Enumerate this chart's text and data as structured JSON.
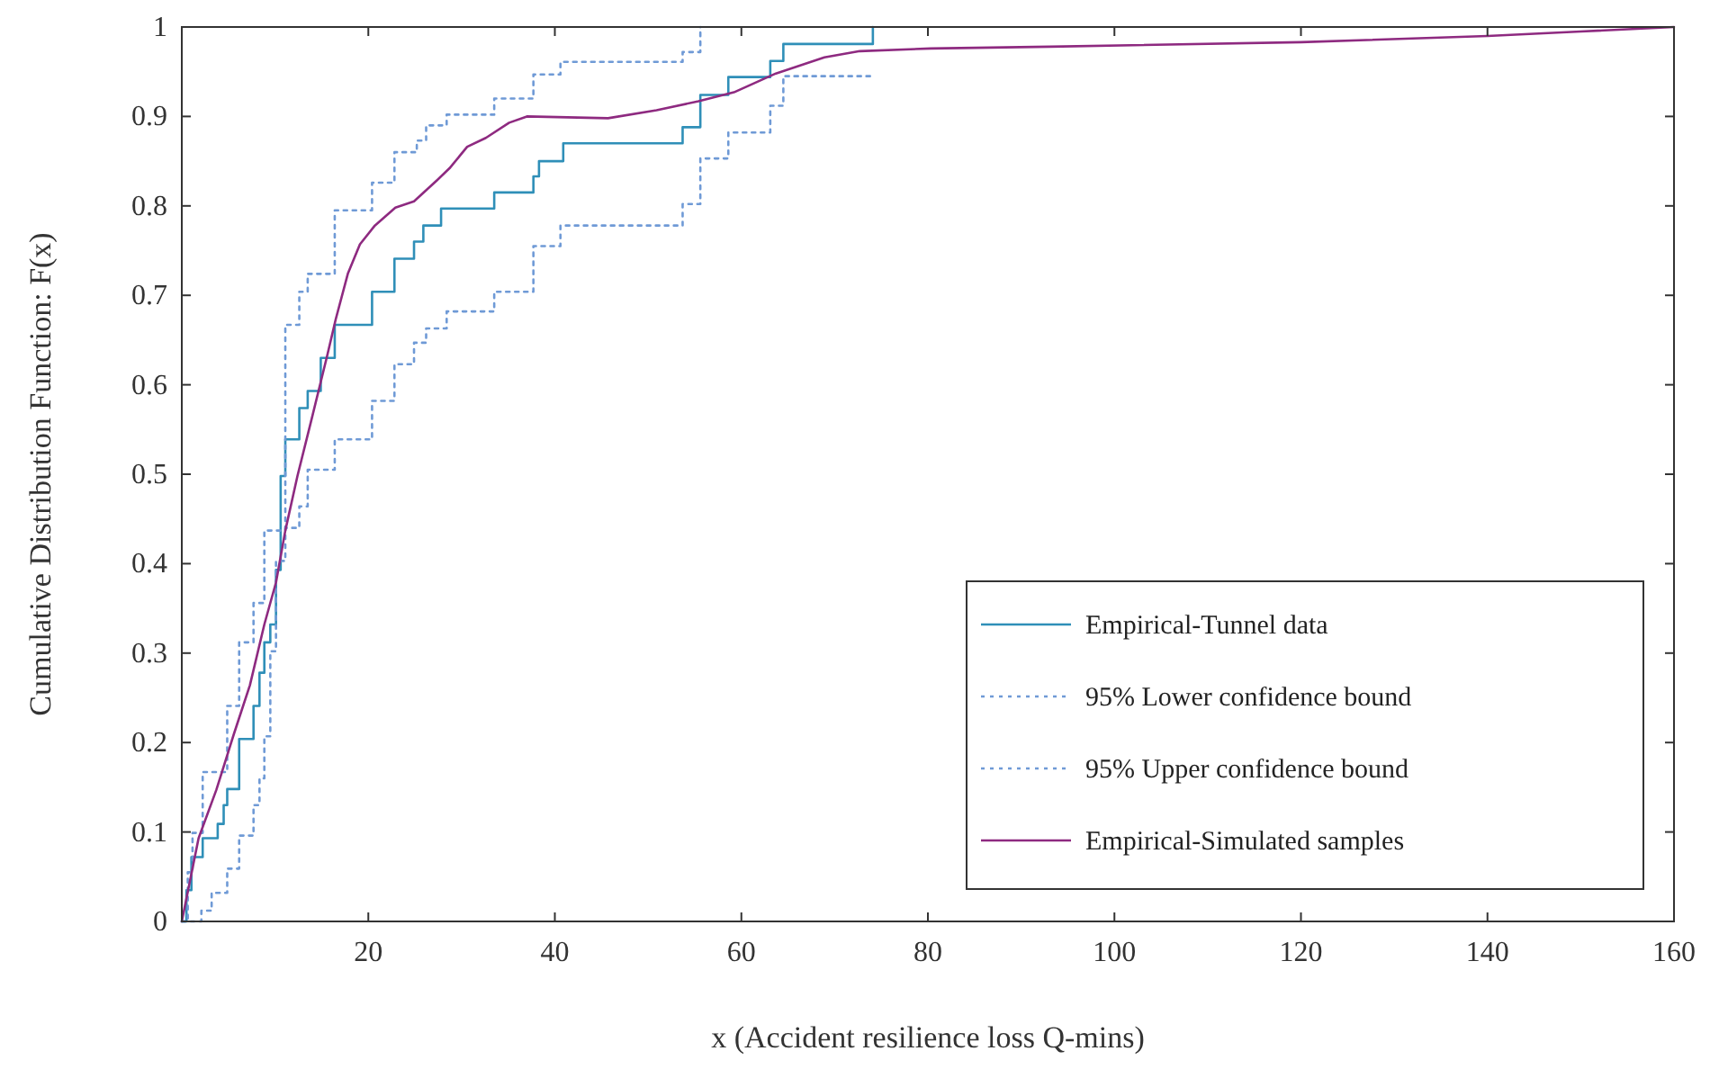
{
  "chart_data": {
    "type": "line",
    "xlabel": "x (Accident resilience loss Q-mins)",
    "ylabel": "Cumulative Distribution Function: F(x)",
    "xlim": [
      0,
      160
    ],
    "ylim": [
      0,
      1
    ],
    "xticks": [
      20,
      40,
      60,
      80,
      100,
      120,
      140,
      160
    ],
    "yticks": [
      0,
      0.1,
      0.2,
      0.3,
      0.4,
      0.5,
      0.6,
      0.7,
      0.8,
      0.9,
      1
    ],
    "grid": false,
    "legend": "bottom right",
    "marker": "none",
    "series": [
      {
        "name": "Empirical-Tunnel data",
        "type": "step",
        "color": "#2f8fb8",
        "line_style": "solid",
        "x": [
          0,
          0.5,
          1.03,
          2.24,
          3.85,
          4.49,
          4.87,
          6.15,
          7.69,
          8.33,
          8.85,
          9.49,
          10.1,
          10.6,
          11.1,
          12.6,
          13.5,
          14.9,
          16.4,
          20.4,
          22.8,
          24.9,
          25.9,
          27.8,
          33.5,
          37.7,
          38.3,
          40.9,
          53.7,
          55.6,
          58.6,
          63.1,
          64.5,
          74.1
        ],
        "values": [
          0,
          0.035,
          0.072,
          0.093,
          0.109,
          0.13,
          0.148,
          0.204,
          0.241,
          0.278,
          0.312,
          0.332,
          0.393,
          0.498,
          0.539,
          0.574,
          0.593,
          0.63,
          0.667,
          0.704,
          0.741,
          0.76,
          0.778,
          0.797,
          0.815,
          0.833,
          0.85,
          0.87,
          0.888,
          0.924,
          0.944,
          0.962,
          0.981,
          1
        ]
      },
      {
        "name": "95% Lower confidence bound",
        "type": "step",
        "color": "#6f9ad6",
        "line_style": "dotted",
        "x": [
          0,
          2.1,
          3.2,
          4.87,
          6.15,
          7.69,
          8.33,
          8.85,
          9.49,
          10.1,
          11.1,
          12.6,
          13.5,
          16.4,
          20.4,
          22.8,
          24.9,
          26.2,
          28.4,
          33.5,
          37.7,
          40.6,
          53.7,
          55.6,
          58.6,
          63.1,
          64.5,
          74.1
        ],
        "values": [
          0,
          0.012,
          0.032,
          0.059,
          0.096,
          0.13,
          0.16,
          0.207,
          0.302,
          0.403,
          0.44,
          0.464,
          0.505,
          0.539,
          0.582,
          0.623,
          0.647,
          0.663,
          0.682,
          0.704,
          0.755,
          0.778,
          0.802,
          0.853,
          0.882,
          0.912,
          0.945,
          0.945
        ]
      },
      {
        "name": "95% Upper confidence bound",
        "type": "step",
        "color": "#6f9ad6",
        "line_style": "dotted",
        "x": [
          0,
          0.64,
          1.15,
          2.24,
          4.87,
          6.15,
          7.69,
          8.85,
          11.1,
          12.6,
          13.5,
          16.4,
          20.4,
          22.8,
          25.2,
          26.2,
          28.4,
          33.5,
          37.7,
          40.6,
          53.7,
          55.6
        ],
        "values": [
          0,
          0.055,
          0.099,
          0.167,
          0.241,
          0.312,
          0.356,
          0.437,
          0.667,
          0.704,
          0.724,
          0.795,
          0.826,
          0.86,
          0.873,
          0.89,
          0.902,
          0.92,
          0.947,
          0.961,
          0.972,
          1
        ]
      },
      {
        "name": "Empirical-Simulated samples",
        "type": "line",
        "color": "#8e2a80",
        "line_style": "solid",
        "x": [
          0,
          1.8,
          3.7,
          5.6,
          7.3,
          8.85,
          10.1,
          11.1,
          12.4,
          14,
          15.6,
          16.5,
          17.8,
          19.1,
          20.7,
          22.9,
          24.9,
          27.4,
          28.7,
          30.6,
          32.6,
          35.1,
          37,
          45.7,
          50.9,
          55.4,
          59.2,
          63.7,
          68.9,
          72.7,
          80.3,
          93.1,
          120,
          140,
          150,
          160
        ],
        "values": [
          0,
          0.093,
          0.147,
          0.21,
          0.264,
          0.332,
          0.379,
          0.437,
          0.498,
          0.565,
          0.633,
          0.673,
          0.724,
          0.757,
          0.778,
          0.798,
          0.805,
          0.829,
          0.842,
          0.866,
          0.876,
          0.893,
          0.9,
          0.898,
          0.907,
          0.917,
          0.927,
          0.948,
          0.966,
          0.973,
          0.976,
          0.978,
          0.983,
          0.99,
          0.995,
          1
        ]
      }
    ]
  }
}
